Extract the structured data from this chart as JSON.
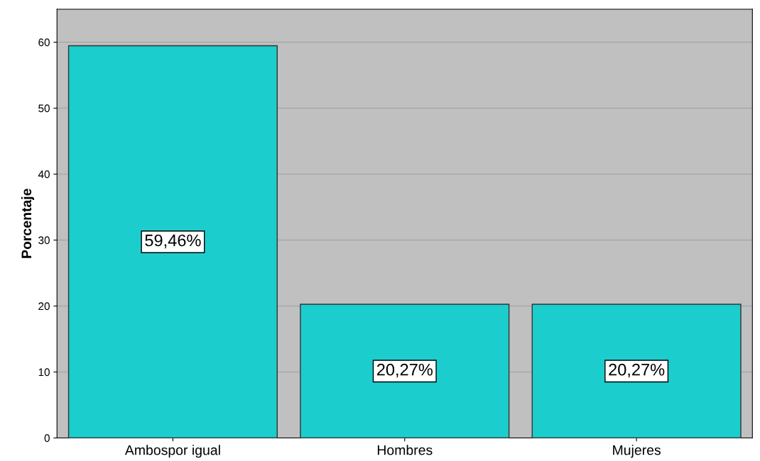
{
  "chart_data": {
    "type": "bar",
    "ylabel": "Porcentaje",
    "categories": [
      "Ambospor igual",
      "Hombres",
      "Mujeres"
    ],
    "values": [
      59.46,
      20.27,
      20.27
    ],
    "value_labels": [
      "59,46%",
      "20,27%",
      "20,27%"
    ],
    "color": "#1ccdcd",
    "ylim": [
      0,
      65
    ],
    "yticks": [
      0,
      10,
      20,
      30,
      40,
      50,
      60
    ],
    "grid": "y"
  }
}
